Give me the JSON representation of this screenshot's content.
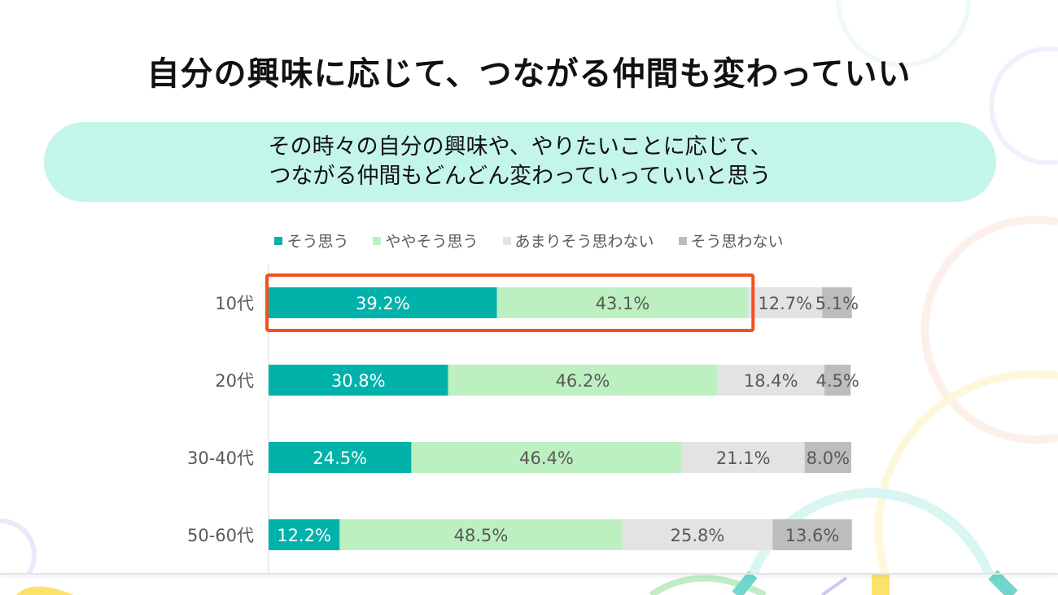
{
  "title": "自分の興味に応じて、つながる仲間も変わっていい",
  "subtitle": [
    "その時々の自分の興味や、やりたいことに応じて、",
    "つながる仲間もどんどん変わっていっていいと思う"
  ],
  "colors": {
    "accent_highlight": "#f4511e",
    "subtitle_bg": "#c4f5ea"
  },
  "chart_data": {
    "type": "bar",
    "orientation": "horizontal",
    "stacked": "100%",
    "categories": [
      "10代",
      "20代",
      "30-40代",
      "50-60代"
    ],
    "series": [
      {
        "name": "そう思う",
        "color": "#00b2aa",
        "values": [
          39.2,
          30.8,
          24.5,
          12.2
        ]
      },
      {
        "name": "ややそう思う",
        "color": "#bdf0c0",
        "values": [
          43.1,
          46.2,
          46.4,
          48.5
        ]
      },
      {
        "name": "あまりそう思わない",
        "color": "#e3e3e3",
        "values": [
          12.7,
          18.4,
          21.1,
          25.8
        ]
      },
      {
        "name": "そう思わない",
        "color": "#bdbdbd",
        "values": [
          5.1,
          4.5,
          8.0,
          13.6
        ]
      }
    ],
    "data_labels": [
      [
        "39.2%",
        "43.1%",
        "12.7%",
        "5.1%"
      ],
      [
        "30.8%",
        "46.2%",
        "18.4%",
        "4.5%"
      ],
      [
        "24.5%",
        "46.4%",
        "21.1%",
        "8.0%"
      ],
      [
        "12.2%",
        "48.5%",
        "25.8%",
        "13.6%"
      ]
    ],
    "legend_position": "top",
    "grid": false,
    "highlight": {
      "category": "10代",
      "series": [
        "そう思う",
        "ややそう思う"
      ]
    }
  }
}
